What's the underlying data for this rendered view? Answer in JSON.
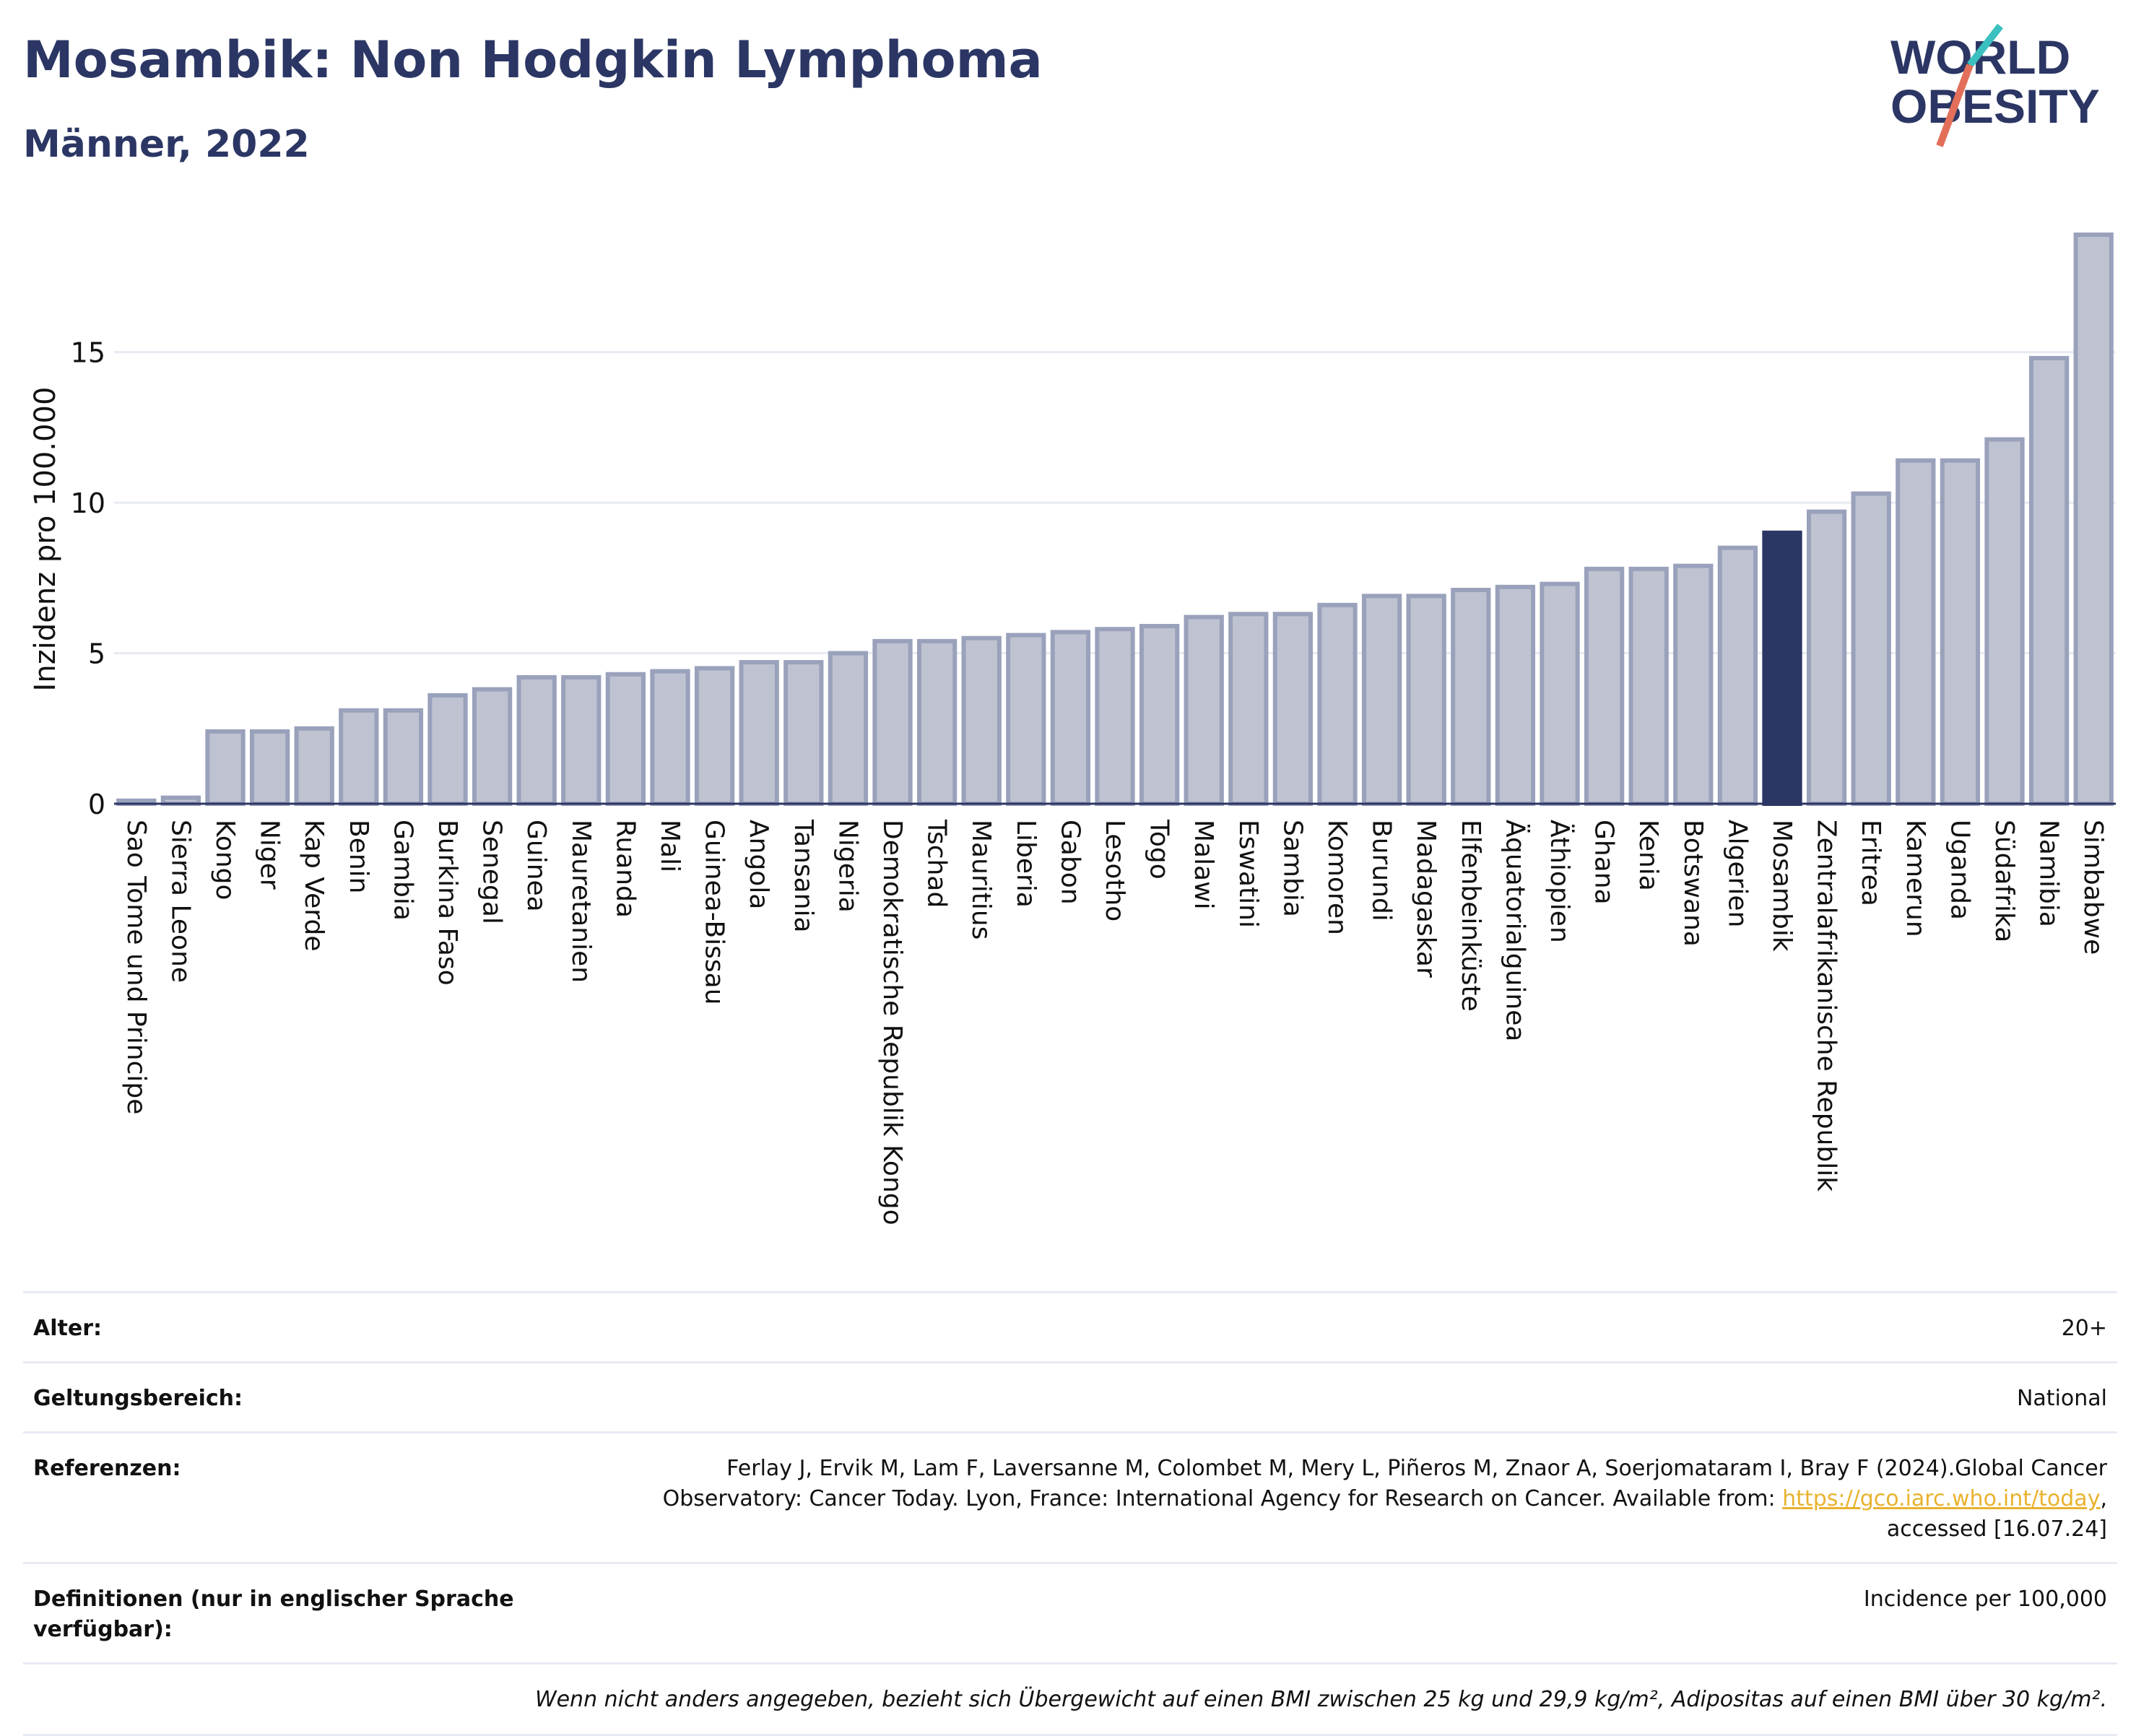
{
  "header": {
    "title": "Mosambik: Non Hodgkin Lymphoma",
    "subtitle": "Männer, 2022"
  },
  "logo": {
    "line1": "WORLD",
    "line2": "OBESITY"
  },
  "colors": {
    "bar_fill": "#bfc3d1",
    "bar_stroke": "#9aa1bb",
    "highlight": "#2b3664",
    "text": "#2b3664",
    "grid": "#e8ebf3",
    "logo_teal": "#3bbfbf",
    "logo_coral": "#e36f5a",
    "link": "#e9b22e"
  },
  "chart_data": {
    "type": "bar",
    "ylabel": "Inzidenz pro 100.000",
    "ylim": [
      0,
      19.5
    ],
    "yticks": [
      0,
      5,
      10,
      15
    ],
    "grid": true,
    "highlight": "Mosambik",
    "categories": [
      "Sao Tome und Principe",
      "Sierra Leone",
      "Kongo",
      "Niger",
      "Kap Verde",
      "Benin",
      "Gambia",
      "Burkina Faso",
      "Senegal",
      "Guinea",
      "Mauretanien",
      "Ruanda",
      "Mali",
      "Guinea-Bissau",
      "Angola",
      "Tansania",
      "Nigeria",
      "Demokratische Republik Kongo",
      "Tschad",
      "Mauritius",
      "Liberia",
      "Gabon",
      "Lesotho",
      "Togo",
      "Malawi",
      "Eswatini",
      "Sambia",
      "Komoren",
      "Burundi",
      "Madagaskar",
      "Elfenbeinküste",
      "Äquatorialguinea",
      "Äthiopien",
      "Ghana",
      "Kenia",
      "Botswana",
      "Algerien",
      "Mosambik",
      "Zentralafrikanische Republik",
      "Eritrea",
      "Kamerun",
      "Uganda",
      "Südafrika",
      "Namibia",
      "Simbabwe"
    ],
    "values": [
      0.1,
      0.2,
      2.4,
      2.4,
      2.5,
      3.1,
      3.1,
      3.6,
      3.8,
      4.2,
      4.2,
      4.3,
      4.4,
      4.5,
      4.7,
      4.7,
      5.0,
      5.4,
      5.4,
      5.5,
      5.6,
      5.7,
      5.8,
      5.9,
      6.2,
      6.3,
      6.3,
      6.6,
      6.9,
      6.9,
      7.1,
      7.2,
      7.3,
      7.8,
      7.8,
      7.9,
      8.5,
      9.0,
      9.7,
      10.3,
      11.4,
      11.4,
      12.1,
      14.8,
      18.9
    ]
  },
  "info": {
    "age_label": "Alter:",
    "age_value": "20+",
    "scope_label": "Geltungsbereich:",
    "scope_value": "National",
    "refs_label": "Referenzen:",
    "refs_text_1": "Ferlay J, Ervik M, Lam F, Laversanne M, Colombet M, Mery L, Piñeros M, Znaor A, Soerjomataram I, Bray F (2024).Global Cancer",
    "refs_text_2": "Observatory: Cancer Today. Lyon, France: International Agency for Research on Cancer. Available from: ",
    "refs_link": "https://gco.iarc.who.int/today",
    "refs_text_3": ",",
    "refs_text_4": "accessed [16.07.24]",
    "def_label": "Definitionen (nur in englischer Sprache verfügbar):",
    "def_value": "Incidence per 100,000",
    "footnote": "Wenn nicht anders angegeben, bezieht sich Übergewicht auf einen BMI zwischen 25 kg und 29,9 kg/m², Adipositas auf einen BMI über 30 kg/m²."
  }
}
